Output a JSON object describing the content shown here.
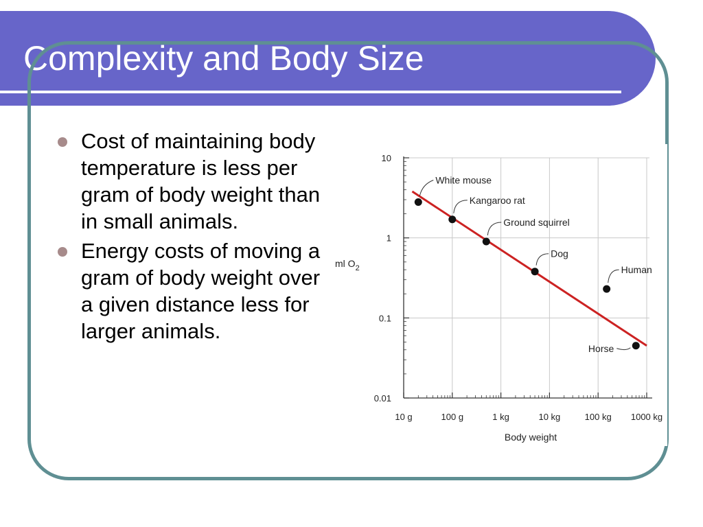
{
  "slide": {
    "title": "Complexity and Body Size",
    "bullets": [
      "Cost of maintaining body temperature is less per gram of body weight than in small animals.",
      "Energy costs of moving a gram of body weight over a given distance less for larger animals."
    ]
  },
  "colors": {
    "title_bar": "#6765c9",
    "frame": "#5f8f93",
    "bullet_dot": "#a78b8b",
    "fit_line": "#cc2222",
    "points": "#111111"
  },
  "chart_data": {
    "type": "scatter",
    "xlabel": "Body weight",
    "ylabel": "ml O",
    "ylabel_sub": "2",
    "x_scale": "log",
    "y_scale": "log",
    "x_unit": "g",
    "xlim": [
      10,
      1000000
    ],
    "ylim": [
      0.01,
      10
    ],
    "x_ticks": [
      {
        "value": 10,
        "label": "10 g"
      },
      {
        "value": 100,
        "label": "100 g"
      },
      {
        "value": 1000,
        "label": "1 kg"
      },
      {
        "value": 10000,
        "label": "10 kg"
      },
      {
        "value": 100000,
        "label": "100 kg"
      },
      {
        "value": 1000000,
        "label": "1000 kg"
      }
    ],
    "y_ticks": [
      {
        "value": 0.01,
        "label": "0.01"
      },
      {
        "value": 0.1,
        "label": "0.1"
      },
      {
        "value": 1,
        "label": "1"
      },
      {
        "value": 10,
        "label": "10"
      }
    ],
    "grid": true,
    "points": [
      {
        "label": "White mouse",
        "x": 20,
        "y": 2.8
      },
      {
        "label": "Kangaroo rat",
        "x": 100,
        "y": 1.7
      },
      {
        "label": "Ground squirrel",
        "x": 500,
        "y": 0.9
      },
      {
        "label": "Dog",
        "x": 5000,
        "y": 0.38
      },
      {
        "label": "Human",
        "x": 150000,
        "y": 0.23
      },
      {
        "label": "Horse",
        "x": 600000,
        "y": 0.045
      }
    ],
    "fit_line": {
      "x": [
        15,
        1000000
      ],
      "y": [
        3.8,
        0.045
      ]
    }
  }
}
